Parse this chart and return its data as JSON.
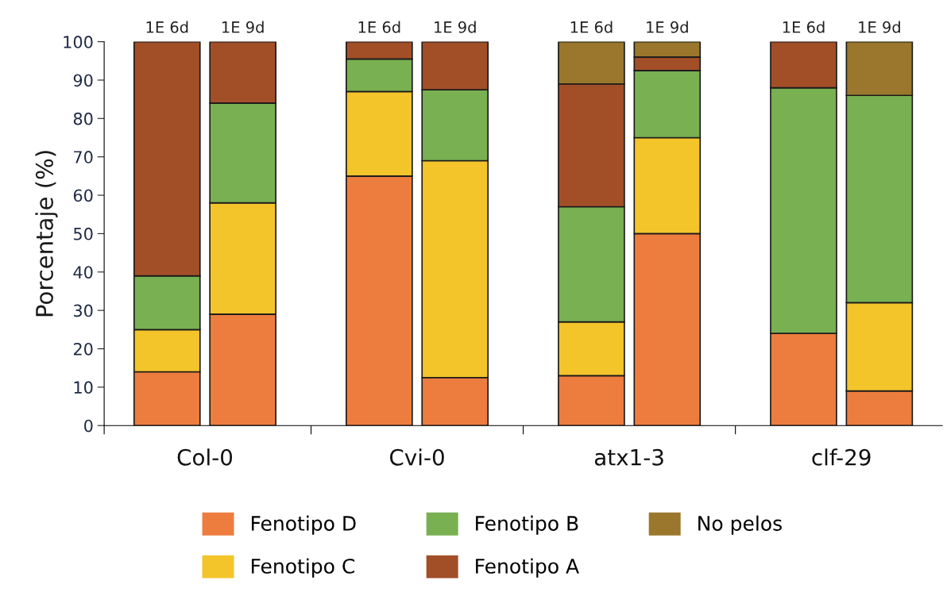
{
  "chart_data": {
    "type": "bar",
    "stacked": true,
    "ylabel": "Porcentaje (%)",
    "categories": [
      "1E 6d",
      "1E 9d",
      "1E 6d",
      "1E 9d",
      "1E 6d",
      "1E 9d",
      "1E 6d",
      "1E 9d"
    ],
    "annotations": [
      "Col-0",
      "Cvi-0",
      "atx1-3",
      "clf-29"
    ],
    "series": [
      {
        "name": "Fenotipo D",
        "color": "#ed7d3f",
        "values": [
          14,
          29,
          65,
          12.5,
          13,
          50,
          24,
          9
        ]
      },
      {
        "name": "Fenotipo C",
        "color": "#f4c42b",
        "values": [
          11,
          29,
          22,
          56.5,
          14,
          25,
          0,
          23
        ]
      },
      {
        "name": "Fenotipo B",
        "color": "#79b052",
        "values": [
          14,
          26,
          8.5,
          18.5,
          30,
          17.5,
          64,
          54
        ]
      },
      {
        "name": "Fenotipo A",
        "color": "#a24f28",
        "values": [
          61,
          16,
          4.5,
          12.5,
          32,
          3.5,
          12,
          0
        ]
      },
      {
        "name": "No pelos",
        "color": "#9a772c",
        "values": [
          0,
          0,
          0,
          0,
          11,
          4,
          0,
          14
        ]
      }
    ],
    "ylim": [
      0,
      100
    ],
    "yticks": [
      0,
      10,
      20,
      30,
      40,
      50,
      60,
      70,
      80,
      90,
      100
    ],
    "legend": "bottom"
  }
}
